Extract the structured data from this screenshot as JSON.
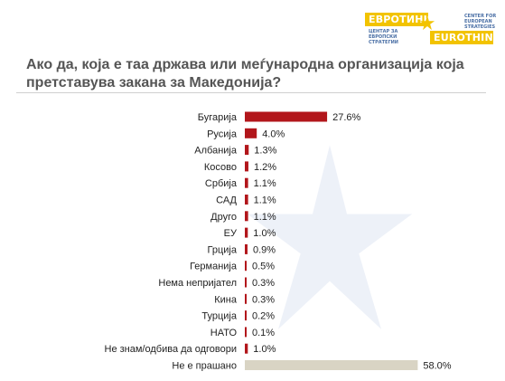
{
  "logo": {
    "top_text": "ЕВРОТИНК",
    "bottom_text": "EUROTHINK",
    "sub_right": "CENTER FOR EUROPEAN STRATEGIES",
    "sub_left": "ЦЕНТАР ЗА ЕВРОПСКИ СТРАТЕГИИ"
  },
  "title": "Ако да, која е таа држава или меѓународна организација која претставува закана за Македонија?",
  "colors": {
    "bar": "#b2161b",
    "bar_other": "#d9d4c4",
    "title": "#555555",
    "logo": "#f2c300"
  },
  "chart_data": {
    "type": "bar",
    "orientation": "horizontal",
    "categories": [
      "Бугарија",
      "Русија",
      "Албанија",
      "Косово",
      "Србија",
      "САД",
      "Друго",
      "ЕУ",
      "Грција",
      "Германија",
      "Нема непријател",
      "Кина",
      "Турција",
      "НАТО",
      "Не знам/одбива да одговори",
      "Не е прашано"
    ],
    "values": [
      27.6,
      4.0,
      1.3,
      1.2,
      1.1,
      1.1,
      1.1,
      1.0,
      0.9,
      0.5,
      0.3,
      0.3,
      0.2,
      0.1,
      1.0,
      58.0
    ],
    "value_labels": [
      "27.6%",
      "4.0%",
      "1.3%",
      "1.2%",
      "1.1%",
      "1.1%",
      "1.1%",
      "1.0%",
      "0.9%",
      "0.5%",
      "0.3%",
      "0.3%",
      "0.2%",
      "0.1%",
      "1.0%",
      "58.0%"
    ],
    "highlight_last": true,
    "title": "",
    "xlabel": "",
    "ylabel": "",
    "grid": false,
    "legend": "none"
  }
}
